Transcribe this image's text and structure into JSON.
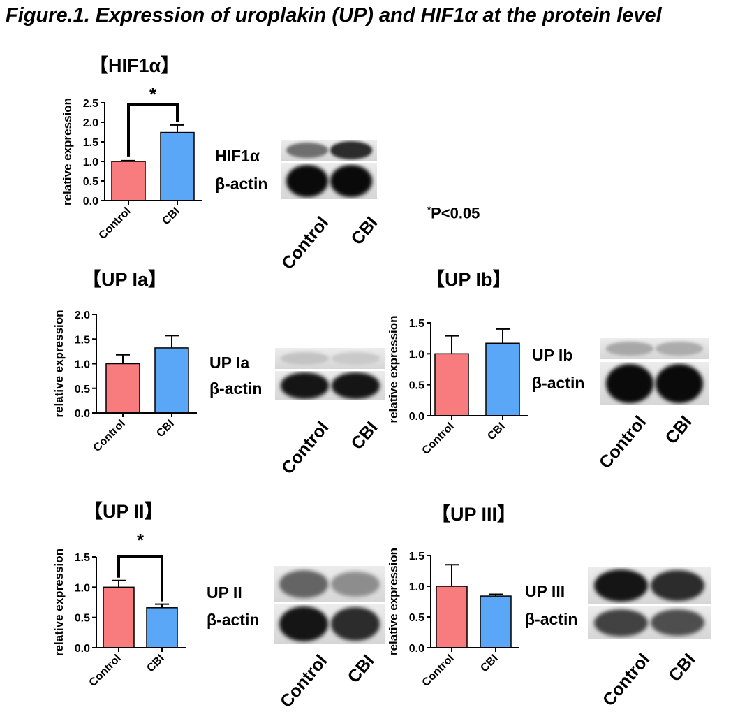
{
  "figure_title": "Figure.1. Expression of  uroplakin (UP) and HIF1α at the protein level",
  "significance_note": {
    "marker": "*",
    "text": "P<0.05"
  },
  "colors": {
    "control": "#f87b7d",
    "cbi": "#5aa7f7",
    "axis": "#000000"
  },
  "chart_data": [
    {
      "id": "hif",
      "panel_title": "【HIF1α】",
      "type": "bar",
      "categories": [
        "Control",
        "CBI"
      ],
      "values": [
        1.0,
        1.74
      ],
      "errors": [
        0.02,
        0.19
      ],
      "ylabel": "relative expression",
      "ylim": [
        0,
        2.5
      ],
      "yticks": [
        "0.0",
        "0.5",
        "1.0",
        "1.5",
        "2.0",
        "2.5"
      ],
      "significance": "*",
      "blot": {
        "bands": [
          "HIF1α",
          "β-actin"
        ],
        "lanes": [
          "Control",
          "CBI"
        ],
        "intensity": [
          [
            0.55,
            0.85
          ],
          [
            1.0,
            1.0
          ]
        ]
      }
    },
    {
      "id": "upia",
      "panel_title": "【UP Ia】",
      "type": "bar",
      "categories": [
        "Control",
        "CBI"
      ],
      "values": [
        1.0,
        1.32
      ],
      "errors": [
        0.18,
        0.25
      ],
      "ylabel": "relative expression",
      "ylim": [
        0,
        2.0
      ],
      "yticks": [
        "0.0",
        "0.5",
        "1.0",
        "1.5",
        "2.0"
      ],
      "significance": "",
      "blot": {
        "bands": [
          "UP Ia",
          "β-actin"
        ],
        "lanes": [
          "Control",
          "CBI"
        ],
        "intensity": [
          [
            0.18,
            0.15
          ],
          [
            0.95,
            0.95
          ]
        ]
      }
    },
    {
      "id": "upib",
      "panel_title": "【UP Ib】",
      "type": "bar",
      "categories": [
        "Control",
        "CBI"
      ],
      "values": [
        1.0,
        1.17
      ],
      "errors": [
        0.29,
        0.23
      ],
      "ylabel": "relative expression",
      "ylim": [
        0,
        1.5
      ],
      "yticks": [
        "0.0",
        "0.5",
        "1.0",
        "1.5"
      ],
      "significance": "",
      "blot": {
        "bands": [
          "UP Ib",
          "β-actin"
        ],
        "lanes": [
          "Control",
          "CBI"
        ],
        "intensity": [
          [
            0.3,
            0.28
          ],
          [
            1.0,
            1.0
          ]
        ]
      }
    },
    {
      "id": "upii",
      "panel_title": "【UP II】",
      "type": "bar",
      "categories": [
        "Control",
        "CBI"
      ],
      "values": [
        1.0,
        0.66
      ],
      "errors": [
        0.11,
        0.06
      ],
      "ylabel": "relative expression",
      "ylim": [
        0,
        1.5
      ],
      "yticks": [
        "0.0",
        "0.5",
        "1.0",
        "1.5"
      ],
      "significance": "*",
      "blot": {
        "bands": [
          "UP II",
          "β-actin"
        ],
        "lanes": [
          "Control",
          "CBI"
        ],
        "intensity": [
          [
            0.6,
            0.42
          ],
          [
            0.95,
            0.85
          ]
        ]
      }
    },
    {
      "id": "upiii",
      "panel_title": "【UP III】",
      "type": "bar",
      "categories": [
        "Control",
        "CBI"
      ],
      "values": [
        1.0,
        0.84
      ],
      "errors": [
        0.35,
        0.03
      ],
      "ylabel": "relative expression",
      "ylim": [
        0,
        1.5
      ],
      "yticks": [
        "0.0",
        "0.5",
        "1.0",
        "1.5"
      ],
      "significance": "",
      "blot": {
        "bands": [
          "UP III",
          "β-actin"
        ],
        "lanes": [
          "Control",
          "CBI"
        ],
        "intensity": [
          [
            0.95,
            0.85
          ],
          [
            0.75,
            0.7
          ]
        ]
      }
    }
  ]
}
